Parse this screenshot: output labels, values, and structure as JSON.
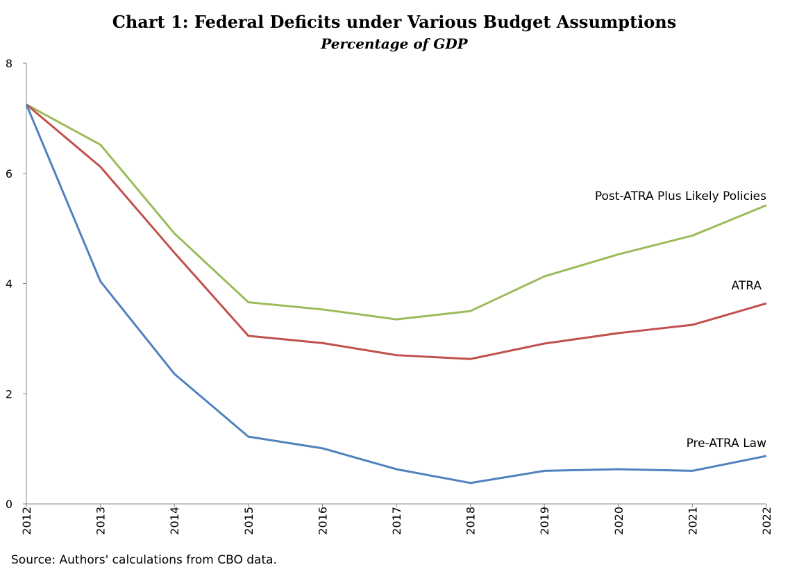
{
  "chart_data": {
    "type": "line",
    "title": "Chart 1: Federal Deficits under Various Budget Assumptions",
    "subtitle": "Percentage of GDP",
    "xlabel": "",
    "ylabel": "",
    "x": [
      "2012",
      "2013",
      "2014",
      "2015",
      "2016",
      "2017",
      "2018",
      "2019",
      "2020",
      "2021",
      "2022"
    ],
    "ylim": [
      0,
      8
    ],
    "yticks": [
      "0",
      "2",
      "4",
      "6",
      "8"
    ],
    "grid": false,
    "legend": "inline labels at right end of lines",
    "series": [
      {
        "name": "Post-ATRA Plus Likely Policies",
        "color": "#9BBB59",
        "values": [
          7.25,
          6.52,
          4.91,
          3.66,
          3.53,
          3.35,
          3.5,
          4.13,
          4.53,
          4.87,
          5.42
        ]
      },
      {
        "name": "ATRA",
        "color": "#C0504D",
        "values": [
          7.25,
          6.12,
          4.56,
          3.05,
          2.92,
          2.7,
          2.63,
          2.91,
          3.1,
          3.25,
          3.64
        ]
      },
      {
        "name": "Pre-ATRA Law",
        "color": "#4F81BD",
        "values": [
          7.25,
          4.04,
          2.36,
          1.22,
          1.01,
          0.63,
          0.38,
          0.6,
          0.63,
          0.6,
          0.87
        ]
      }
    ],
    "source": "Source: Authors' calculations from CBO data."
  }
}
